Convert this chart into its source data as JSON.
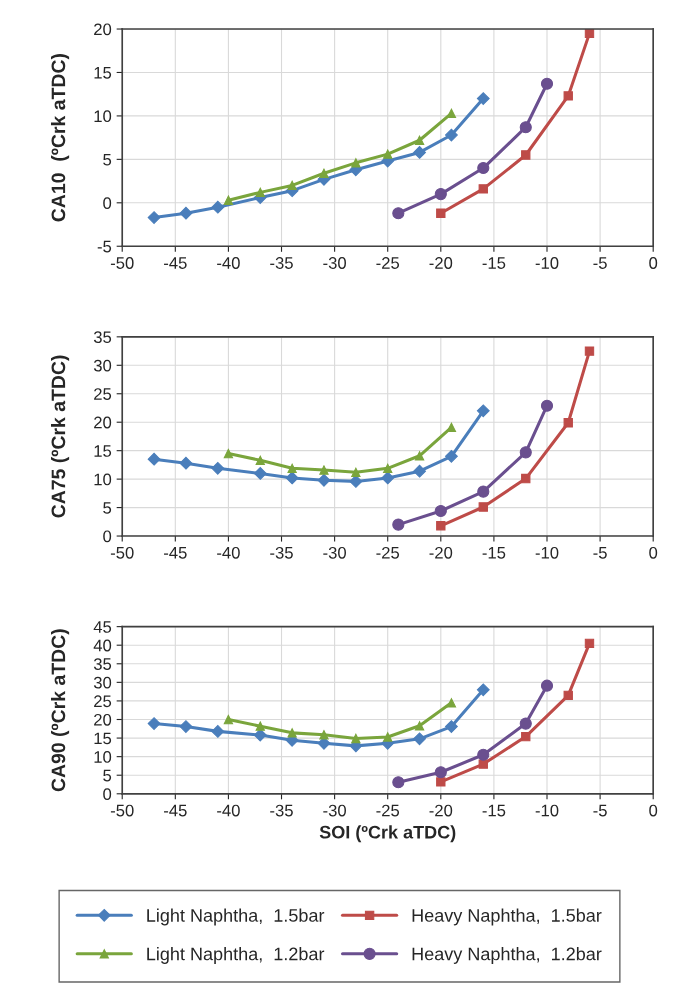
{
  "chart_data": [
    {
      "type": "line",
      "ylabel": "CA10  (ºCrk aTDC)",
      "xlim": [
        -50,
        0
      ],
      "xticks": [
        -50,
        -45,
        -40,
        -35,
        -30,
        -25,
        -20,
        -15,
        -10,
        -5,
        0
      ],
      "ylim": [
        -5,
        20
      ],
      "yticks": [
        -5,
        0,
        5,
        10,
        15,
        20
      ],
      "grid": true,
      "legend": false,
      "series": [
        {
          "color": "#4a7ebb",
          "marker": "diamond",
          "x": [
            -47,
            -44,
            -41,
            -37,
            -34,
            -31,
            -28,
            -25,
            -22,
            -19,
            -16
          ],
          "values": [
            -1.7,
            -1.2,
            -0.5,
            0.6,
            1.4,
            2.7,
            3.8,
            4.8,
            5.8,
            7.8,
            12.0
          ]
        },
        {
          "color": "#be4b48",
          "marker": "square",
          "x": [
            -20,
            -16,
            -12,
            -8,
            -6
          ],
          "values": [
            -1.2,
            1.6,
            5.5,
            12.3,
            19.5
          ]
        },
        {
          "color": "#7aa53c",
          "marker": "triangle",
          "x": [
            -40,
            -37,
            -34,
            -31,
            -28,
            -25,
            -22,
            -19
          ],
          "values": [
            0.3,
            1.2,
            2.0,
            3.4,
            4.6,
            5.6,
            7.2,
            10.3
          ]
        },
        {
          "color": "#6a4f8f",
          "marker": "circle",
          "x": [
            -24,
            -20,
            -16,
            -12,
            -10
          ],
          "values": [
            -1.2,
            1.0,
            4.0,
            8.7,
            13.7
          ]
        }
      ]
    },
    {
      "type": "line",
      "ylabel": "CA75 (ºCrk aTDC)",
      "xlim": [
        -50,
        0
      ],
      "xticks": [
        -50,
        -45,
        -40,
        -35,
        -30,
        -25,
        -20,
        -15,
        -10,
        -5,
        0
      ],
      "ylim": [
        0,
        35
      ],
      "yticks": [
        0,
        5,
        10,
        15,
        20,
        25,
        30,
        35
      ],
      "grid": true,
      "legend": false,
      "series": [
        {
          "color": "#4a7ebb",
          "marker": "diamond",
          "x": [
            -47,
            -44,
            -41,
            -37,
            -34,
            -31,
            -28,
            -25,
            -22,
            -19,
            -16
          ],
          "values": [
            13.5,
            12.8,
            11.9,
            11.0,
            10.2,
            9.8,
            9.6,
            10.2,
            11.4,
            14.0,
            22.0
          ]
        },
        {
          "color": "#be4b48",
          "marker": "square",
          "x": [
            -20,
            -16,
            -12,
            -8,
            -6
          ],
          "values": [
            1.8,
            5.1,
            10.1,
            19.9,
            32.5
          ]
        },
        {
          "color": "#7aa53c",
          "marker": "triangle",
          "x": [
            -40,
            -37,
            -34,
            -31,
            -28,
            -25,
            -22,
            -19
          ],
          "values": [
            14.5,
            13.3,
            11.9,
            11.6,
            11.2,
            11.9,
            14.1,
            19.1
          ]
        },
        {
          "color": "#6a4f8f",
          "marker": "circle",
          "x": [
            -24,
            -20,
            -16,
            -12,
            -10
          ],
          "values": [
            2.0,
            4.4,
            7.8,
            14.7,
            22.9
          ]
        }
      ]
    },
    {
      "type": "line",
      "ylabel": "CA90 (ºCrk aTDC)",
      "xlabel": "SOI (ºCrk aTDC)",
      "xlim": [
        -50,
        0
      ],
      "xticks": [
        -50,
        -45,
        -40,
        -35,
        -30,
        -25,
        -20,
        -15,
        -10,
        -5,
        0
      ],
      "ylim": [
        0,
        45
      ],
      "yticks": [
        0,
        5,
        10,
        15,
        20,
        25,
        30,
        35,
        40,
        45
      ],
      "grid": true,
      "legend": "bottom",
      "series": [
        {
          "name": "Light Naphtha,  1.5bar",
          "color": "#4a7ebb",
          "marker": "diamond",
          "x": [
            -47,
            -44,
            -41,
            -37,
            -34,
            -31,
            -28,
            -25,
            -22,
            -19,
            -16
          ],
          "values": [
            18.9,
            18.1,
            16.8,
            15.8,
            14.4,
            13.6,
            12.9,
            13.6,
            14.8,
            18.1,
            28.0
          ]
        },
        {
          "name": "Heavy Naphtha,  1.5bar",
          "color": "#be4b48",
          "marker": "square",
          "x": [
            -20,
            -16,
            -12,
            -8,
            -6
          ],
          "values": [
            3.2,
            8.0,
            15.4,
            26.5,
            40.5
          ]
        },
        {
          "name": "Light Naphtha,  1.2bar",
          "color": "#7aa53c",
          "marker": "triangle",
          "x": [
            -40,
            -37,
            -34,
            -31,
            -28,
            -25,
            -22,
            -19
          ],
          "values": [
            20.0,
            18.2,
            16.4,
            15.9,
            14.9,
            15.3,
            18.3,
            24.5
          ]
        },
        {
          "name": "Heavy Naphtha,  1.2bar",
          "color": "#6a4f8f",
          "marker": "circle",
          "x": [
            -24,
            -20,
            -16,
            -12,
            -10
          ],
          "values": [
            3.1,
            5.8,
            10.5,
            18.9,
            29.1
          ]
        }
      ]
    }
  ]
}
